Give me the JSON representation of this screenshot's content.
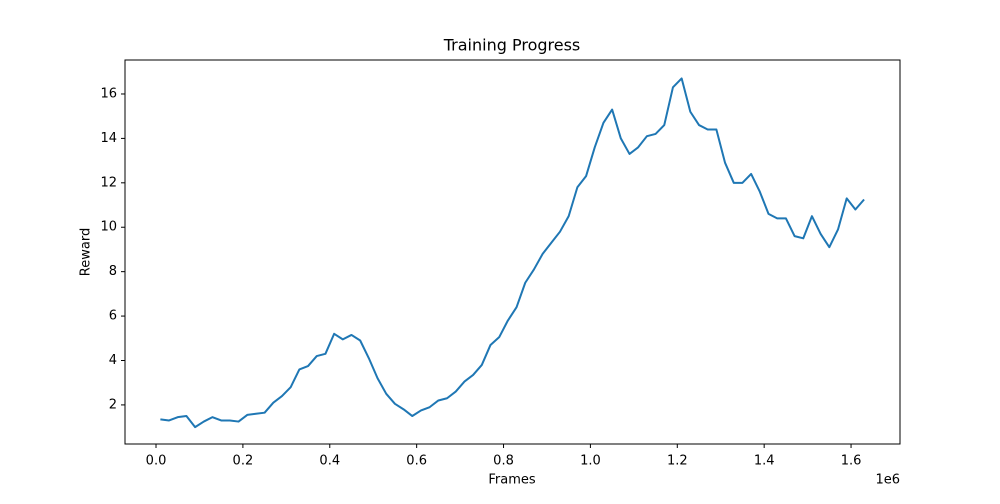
{
  "chart_data": {
    "type": "line",
    "title": "Training Progress",
    "x_label": "Frames",
    "y_label": "Reward",
    "x_offset_label": "1e6",
    "color": "#1f77b4",
    "x": [
      10000,
      30000,
      50000,
      70000,
      90000,
      110000,
      130000,
      150000,
      170000,
      190000,
      210000,
      230000,
      250000,
      270000,
      290000,
      310000,
      330000,
      350000,
      370000,
      390000,
      410000,
      430000,
      450000,
      470000,
      490000,
      510000,
      530000,
      550000,
      570000,
      590000,
      610000,
      630000,
      650000,
      670000,
      690000,
      710000,
      730000,
      750000,
      770000,
      790000,
      810000,
      830000,
      850000,
      870000,
      890000,
      910000,
      930000,
      950000,
      970000,
      990000,
      1010000,
      1030000,
      1050000,
      1070000,
      1090000,
      1110000,
      1130000,
      1150000,
      1170000,
      1190000,
      1210000,
      1230000,
      1250000,
      1270000,
      1290000,
      1310000,
      1330000,
      1350000,
      1370000,
      1390000,
      1410000,
      1430000,
      1450000,
      1470000,
      1490000,
      1510000,
      1530000,
      1550000,
      1570000,
      1590000,
      1610000,
      1630000
    ],
    "values": [
      1.35,
      1.3,
      1.45,
      1.5,
      1.0,
      1.25,
      1.45,
      1.3,
      1.3,
      1.25,
      1.55,
      1.6,
      1.65,
      2.1,
      2.4,
      2.8,
      3.6,
      3.75,
      4.2,
      4.3,
      5.2,
      4.95,
      5.15,
      4.9,
      4.1,
      3.2,
      2.5,
      2.05,
      1.8,
      1.5,
      1.75,
      1.9,
      2.2,
      2.3,
      2.6,
      3.05,
      3.35,
      3.8,
      4.7,
      5.05,
      5.8,
      6.4,
      7.5,
      8.1,
      8.8,
      9.3,
      9.8,
      10.5,
      11.8,
      12.3,
      13.6,
      14.7,
      15.3,
      14.0,
      13.3,
      13.6,
      14.1,
      14.2,
      14.6,
      16.3,
      16.7,
      15.2,
      14.6,
      14.4,
      14.4,
      12.9,
      12.0,
      12.0,
      12.4,
      11.6,
      10.6,
      10.4,
      10.4,
      9.6,
      9.5,
      10.5,
      9.7,
      9.1,
      9.9,
      11.3,
      10.8,
      11.25
    ],
    "xlim": [
      -71400,
      1712700
    ],
    "ylim": [
      0.24,
      17.53
    ],
    "xticks": [
      {
        "value": 0,
        "label": "0.0"
      },
      {
        "value": 200000,
        "label": "0.2"
      },
      {
        "value": 400000,
        "label": "0.4"
      },
      {
        "value": 600000,
        "label": "0.6"
      },
      {
        "value": 800000,
        "label": "0.8"
      },
      {
        "value": 1000000,
        "label": "1.0"
      },
      {
        "value": 1200000,
        "label": "1.2"
      },
      {
        "value": 1400000,
        "label": "1.4"
      },
      {
        "value": 1600000,
        "label": "1.6"
      }
    ],
    "yticks": [
      2,
      4,
      6,
      8,
      10,
      12,
      14,
      16
    ],
    "grid": false
  }
}
